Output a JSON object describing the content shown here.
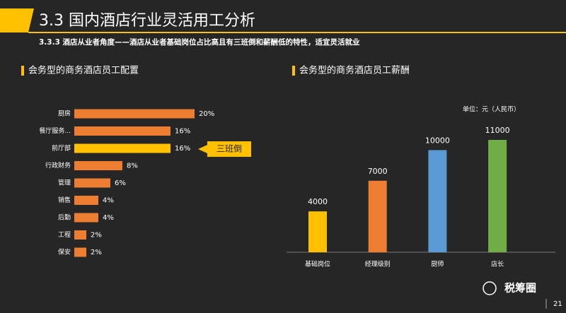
{
  "title": "3.3 国内酒店行业灵活用工分析",
  "subtitle": "3.3.3 酒店从业者角度——酒店从业者基础岗位占比高且有三班倒和薪酬低的特性，适宜灵活就业",
  "chart_data": [
    {
      "type": "hbar",
      "title": "会务型的商务酒店员工配置",
      "categories": [
        "厨房",
        "餐厅服务...",
        "前厅部",
        "行政财务",
        "管理",
        "销售",
        "后勤",
        "工程",
        "保安"
      ],
      "values": [
        20,
        16,
        16,
        8,
        6,
        4,
        4,
        2,
        2
      ],
      "value_labels": [
        "20%",
        "16%",
        "16%",
        "8%",
        "6%",
        "4%",
        "4%",
        "2%",
        "2%"
      ],
      "colors": [
        "#ed7d31",
        "#ed7d31",
        "#ffc000",
        "#ed7d31",
        "#ed7d31",
        "#ed7d31",
        "#ed7d31",
        "#ed7d31",
        "#ed7d31"
      ],
      "annotation": "三班倒"
    },
    {
      "type": "bar",
      "title": "会务型的商务酒店员工薪酬",
      "unit_label": "单位：元（人民币）",
      "categories": [
        "基础岗位",
        "经理级别",
        "厨师",
        "店长"
      ],
      "values": [
        4000,
        7000,
        10000,
        11000
      ],
      "colors": [
        "#ffc000",
        "#ed7d31",
        "#5b9bd5",
        "#70ad47"
      ]
    }
  ],
  "footer": {
    "brand": "税筹圈",
    "page": "21"
  }
}
